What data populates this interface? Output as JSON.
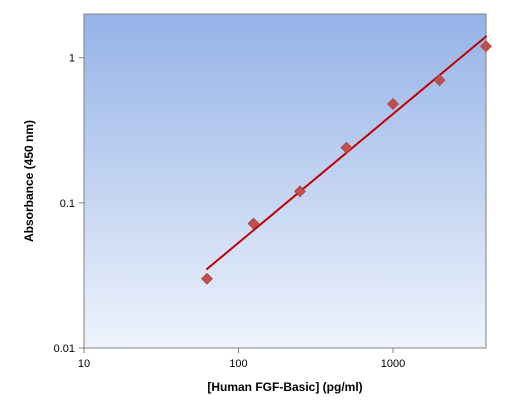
{
  "chart_data": {
    "type": "scatter",
    "title": "",
    "xlabel": "[Human FGF-Basic] (pg/ml)",
    "ylabel": "Absorbance (450 nm)",
    "xscale": "log",
    "yscale": "log",
    "xlim": [
      10,
      4000
    ],
    "ylim": [
      0.01,
      2
    ],
    "xticks": [
      10,
      100,
      1000
    ],
    "xtick_labels": [
      "10",
      "100",
      "1000"
    ],
    "yticks": [
      0.01,
      0.1,
      1
    ],
    "ytick_labels": [
      "0.01",
      "0.1",
      "1"
    ],
    "grid": false,
    "legend": "none",
    "series": [
      {
        "marker": "diamond",
        "x": [
          62.5,
          125,
          250,
          500,
          1000,
          2000,
          4000
        ],
        "y": [
          0.03,
          0.072,
          0.12,
          0.24,
          0.48,
          0.7,
          1.2
        ]
      }
    ],
    "fit_line": {
      "type": "power-law fit",
      "x": [
        62.5,
        4000
      ],
      "y": [
        0.035,
        1.4
      ]
    },
    "colors": {
      "marker": "#c0504d",
      "fit_line": "#c00000",
      "plot_bg_top": "#95b3e8",
      "plot_bg_bottom": "#eef3fb",
      "axis": "#808080"
    }
  }
}
